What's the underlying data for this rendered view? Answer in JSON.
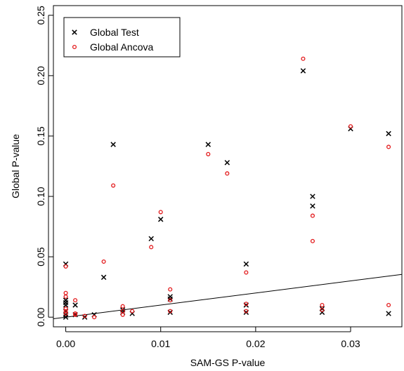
{
  "chart_data": {
    "type": "scatter",
    "title": "",
    "xlabel": "SAM-GS P-value",
    "ylabel": "Global P-value",
    "xlim": [
      -0.0013,
      0.0354
    ],
    "ylim": [
      -0.008,
      0.258
    ],
    "x_ticks": [
      0.0,
      0.01,
      0.02,
      0.03
    ],
    "x_tick_labels": [
      "0.00",
      "0.01",
      "0.02",
      "0.03"
    ],
    "y_ticks": [
      0.0,
      0.05,
      0.1,
      0.15,
      0.2,
      0.25
    ],
    "y_tick_labels": [
      "0.00",
      "0.05",
      "0.10",
      "0.15",
      "0.20",
      "0.25"
    ],
    "grid": false,
    "legend_position": "top-left",
    "reference_line": {
      "kind": "y=x",
      "intercept": 0,
      "slope": 1
    },
    "series": [
      {
        "name": "Global Test",
        "marker": "x",
        "color": "#000000",
        "points": [
          [
            0.0,
            0.044
          ],
          [
            0.0,
            0.014
          ],
          [
            0.0,
            0.012
          ],
          [
            0.0,
            0.01
          ],
          [
            0.0,
            0.005
          ],
          [
            0.0,
            0.002
          ],
          [
            0.0,
            0.0
          ],
          [
            0.001,
            0.01
          ],
          [
            0.001,
            0.002
          ],
          [
            0.002,
            0.0
          ],
          [
            0.003,
            0.002
          ],
          [
            0.004,
            0.033
          ],
          [
            0.005,
            0.143
          ],
          [
            0.006,
            0.006
          ],
          [
            0.006,
            0.004
          ],
          [
            0.007,
            0.003
          ],
          [
            0.009,
            0.065
          ],
          [
            0.01,
            0.081
          ],
          [
            0.011,
            0.017
          ],
          [
            0.011,
            0.015
          ],
          [
            0.011,
            0.004
          ],
          [
            0.015,
            0.143
          ],
          [
            0.017,
            0.128
          ],
          [
            0.019,
            0.044
          ],
          [
            0.019,
            0.01
          ],
          [
            0.019,
            0.004
          ],
          [
            0.025,
            0.204
          ],
          [
            0.026,
            0.1
          ],
          [
            0.026,
            0.092
          ],
          [
            0.027,
            0.007
          ],
          [
            0.027,
            0.004
          ],
          [
            0.03,
            0.156
          ],
          [
            0.034,
            0.152
          ],
          [
            0.034,
            0.003
          ]
        ]
      },
      {
        "name": "Global Ancova",
        "marker": "o",
        "color": "#e31a1c",
        "points": [
          [
            0.0,
            0.042
          ],
          [
            0.0,
            0.02
          ],
          [
            0.0,
            0.017
          ],
          [
            0.0,
            0.007
          ],
          [
            0.0,
            0.005
          ],
          [
            0.0,
            0.003
          ],
          [
            0.001,
            0.014
          ],
          [
            0.001,
            0.003
          ],
          [
            0.001,
            0.002
          ],
          [
            0.002,
            0.001
          ],
          [
            0.003,
            0.0
          ],
          [
            0.004,
            0.046
          ],
          [
            0.005,
            0.109
          ],
          [
            0.006,
            0.009
          ],
          [
            0.006,
            0.005
          ],
          [
            0.006,
            0.002
          ],
          [
            0.007,
            0.005
          ],
          [
            0.009,
            0.058
          ],
          [
            0.01,
            0.087
          ],
          [
            0.011,
            0.023
          ],
          [
            0.011,
            0.014
          ],
          [
            0.011,
            0.005
          ],
          [
            0.015,
            0.135
          ],
          [
            0.017,
            0.119
          ],
          [
            0.019,
            0.037
          ],
          [
            0.019,
            0.011
          ],
          [
            0.019,
            0.005
          ],
          [
            0.025,
            0.214
          ],
          [
            0.026,
            0.084
          ],
          [
            0.026,
            0.063
          ],
          [
            0.027,
            0.01
          ],
          [
            0.027,
            0.006
          ],
          [
            0.03,
            0.158
          ],
          [
            0.034,
            0.141
          ],
          [
            0.034,
            0.01
          ]
        ]
      }
    ]
  }
}
